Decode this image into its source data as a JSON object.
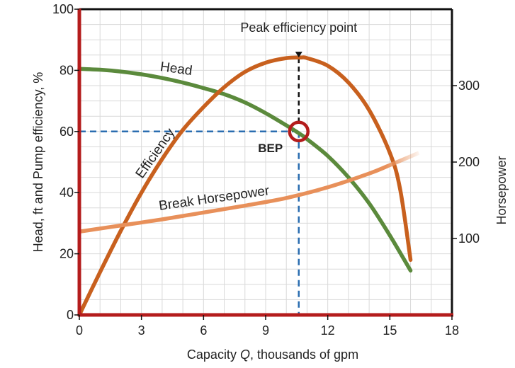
{
  "chart_data": {
    "type": "line",
    "title": "",
    "xlabel_prefix": "Capacity ",
    "xlabel_var": "Q",
    "xlabel_suffix": ", thousands of gpm",
    "ylabel_left": "Head, ft  and  Pump efficiency, %",
    "ylabel_right": "Horsepower",
    "xlim": [
      0,
      18
    ],
    "ylim_left": [
      0,
      100
    ],
    "ylim_right": [
      0,
      400
    ],
    "x_ticks": [
      0,
      3,
      6,
      9,
      12,
      15,
      18
    ],
    "y_ticks_left": [
      0,
      20,
      40,
      60,
      80,
      100
    ],
    "y_ticks_right": [
      100,
      200,
      300
    ],
    "grid": true,
    "series": [
      {
        "name": "Head",
        "axis": "left",
        "color": "#5b8a3c",
        "x": [
          0,
          1,
          2,
          3,
          4,
          5,
          6,
          7,
          8,
          9,
          10,
          10.7,
          11,
          12,
          13,
          14,
          15,
          16
        ],
        "y": [
          80.5,
          80.2,
          79.6,
          78.7,
          77.5,
          76,
          74.2,
          72.2,
          69.5,
          66,
          62,
          59,
          57.5,
          52,
          45,
          36.5,
          26,
          14.5
        ]
      },
      {
        "name": "Efficiency",
        "axis": "left",
        "color": "#c8601e",
        "x": [
          0,
          1,
          2,
          3,
          4,
          5,
          6,
          7,
          8,
          9,
          10,
          10.7,
          11,
          12,
          13,
          14,
          15,
          15.5,
          16
        ],
        "y": [
          0,
          14,
          27.5,
          40,
          51,
          60.5,
          68,
          74.5,
          79.5,
          82.5,
          84,
          84.2,
          84,
          81.5,
          76,
          67,
          53,
          41,
          18
        ]
      },
      {
        "name": "Break Horsepower",
        "axis": "right",
        "color": "#e8905a",
        "x": [
          0,
          2,
          4,
          6,
          8,
          10,
          12,
          14,
          15,
          16.4
        ],
        "y": [
          109,
          117,
          125,
          134,
          143,
          153,
          167,
          185,
          196,
          212
        ]
      }
    ],
    "bep": {
      "label": "BEP",
      "x": 10.6,
      "y": 60,
      "marker_color": "#b41c1c"
    },
    "peak_annotation": {
      "label": "Peak efficiency point",
      "x": 10.6,
      "y": 84
    },
    "series_labels": {
      "head": "Head",
      "efficiency": "Efficiency",
      "bhp": "Break Horsepower"
    },
    "colors": {
      "frame": "#b41c1c",
      "guide": "#2a6db0",
      "grid": "#d9d9d9"
    }
  }
}
